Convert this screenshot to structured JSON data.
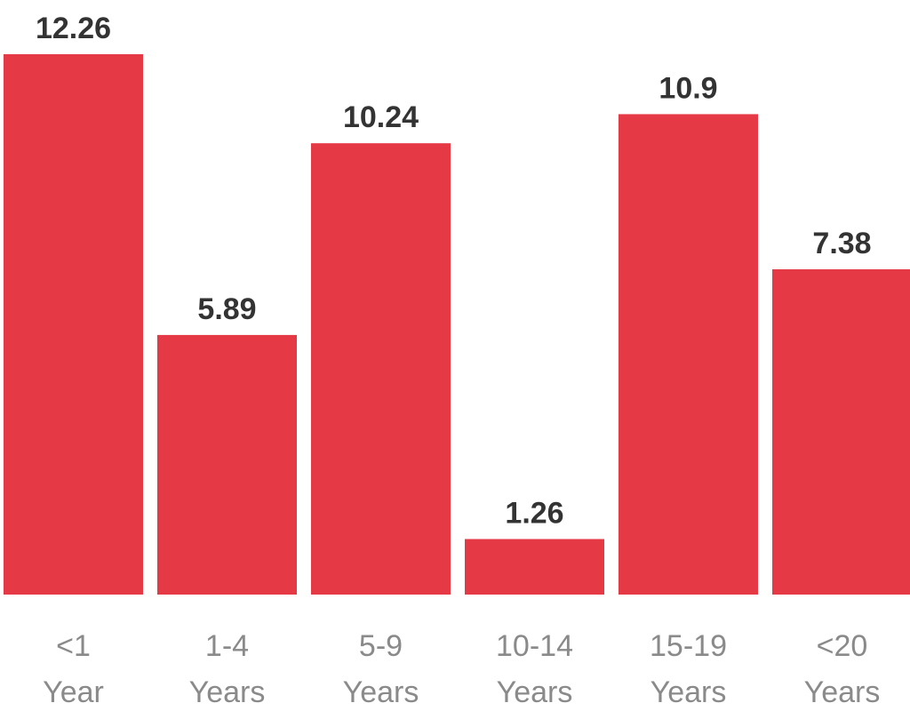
{
  "chart_data": {
    "type": "bar",
    "categories": [
      [
        "<1",
        "Year"
      ],
      [
        "1-4",
        "Years"
      ],
      [
        "5-9",
        "Years"
      ],
      [
        "10-14",
        "Years"
      ],
      [
        "15-19",
        "Years"
      ],
      [
        "<20",
        "Years"
      ]
    ],
    "values": [
      12.26,
      5.89,
      10.24,
      1.26,
      10.9,
      7.38
    ],
    "value_labels": [
      "12.26",
      "5.89",
      "10.24",
      "1.26",
      "10.9",
      "7.38"
    ],
    "title": "",
    "xlabel": "",
    "ylabel": "",
    "ylim": [
      0,
      12.26
    ],
    "grid": false,
    "legend": "none",
    "bar_color": "#e63946"
  }
}
